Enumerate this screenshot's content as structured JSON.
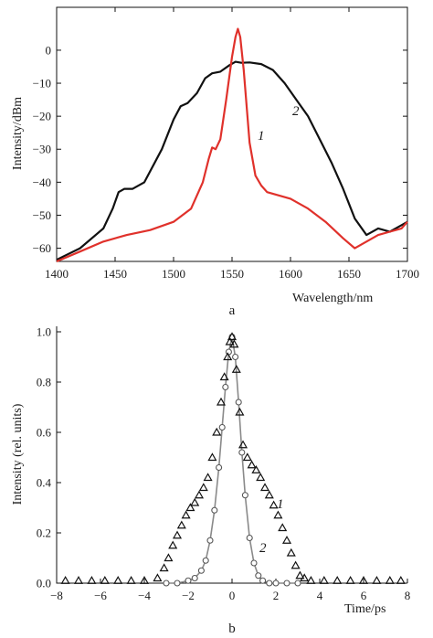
{
  "chart_data": [
    {
      "panel_label": "a",
      "type": "line",
      "xlabel": "Wavelength/nm",
      "ylabel": "Intensity/dBm",
      "xlim": [
        1400,
        1700
      ],
      "ylim": [
        -64,
        13
      ],
      "xticks": [
        1400,
        1450,
        1500,
        1550,
        1600,
        1650,
        1700
      ],
      "yticks": [
        0,
        -10,
        -20,
        -30,
        -40,
        -50,
        -60
      ],
      "grid": false,
      "series": [
        {
          "name": "2",
          "color": "#111111",
          "x": [
            1400,
            1420,
            1440,
            1448,
            1453,
            1458,
            1465,
            1475,
            1490,
            1500,
            1506,
            1512,
            1520,
            1527,
            1533,
            1540,
            1548,
            1553,
            1558,
            1565,
            1575,
            1585,
            1595,
            1605,
            1615,
            1625,
            1635,
            1645,
            1655,
            1665,
            1675,
            1685,
            1695,
            1700
          ],
          "y": [
            -63.5,
            -60,
            -54,
            -48,
            -43,
            -42,
            -42,
            -40,
            -30,
            -21,
            -17,
            -16,
            -13,
            -8.5,
            -7,
            -6.5,
            -4.5,
            -3.5,
            -3.8,
            -3.7,
            -4.2,
            -6,
            -10,
            -15,
            -20,
            -27,
            -34,
            -42,
            -51,
            -56,
            -54,
            -55,
            -53,
            -52
          ]
        },
        {
          "name": "1",
          "color": "#e0312b",
          "x": [
            1400,
            1420,
            1440,
            1460,
            1480,
            1500,
            1515,
            1525,
            1530,
            1533,
            1536,
            1540,
            1545,
            1550,
            1553,
            1555,
            1557,
            1560,
            1565,
            1570,
            1575,
            1580,
            1590,
            1600,
            1615,
            1630,
            1645,
            1655,
            1665,
            1675,
            1685,
            1695,
            1700
          ],
          "y": [
            -64,
            -61,
            -58,
            -56,
            -54.5,
            -52,
            -48,
            -40,
            -33,
            -29.5,
            -30,
            -27,
            -15,
            -2,
            4,
            6.5,
            4,
            -6,
            -28,
            -38,
            -41,
            -43,
            -44,
            -45,
            -48,
            -52,
            -57,
            -60,
            -58,
            -56,
            -55,
            -54,
            -52
          ]
        }
      ],
      "annotations": [
        "1",
        "2"
      ]
    },
    {
      "panel_label": "b",
      "type": "scatter",
      "xlabel": "Time/ps",
      "ylabel": "Intensity (rel. units)",
      "xlim": [
        -8,
        8
      ],
      "ylim": [
        0,
        1.0
      ],
      "xticks": [
        -8,
        -6,
        -4,
        -2,
        0,
        2,
        4,
        6,
        8
      ],
      "yticks": [
        0.0,
        0.2,
        0.4,
        0.6,
        0.8,
        1.0
      ],
      "ytick_labels": [
        "0.0",
        "0.2",
        "0.4",
        "0.6",
        "0.8",
        "1.0"
      ],
      "grid": false,
      "series": [
        {
          "name": "2",
          "marker": "triangle",
          "color": "#111111",
          "x": [
            -7.6,
            -7.0,
            -6.4,
            -5.8,
            -5.2,
            -4.6,
            -4.0,
            -3.4,
            -3.1,
            -2.9,
            -2.7,
            -2.5,
            -2.3,
            -2.1,
            -1.9,
            -1.7,
            -1.5,
            -1.3,
            -1.1,
            -0.9,
            -0.7,
            -0.5,
            -0.35,
            -0.2,
            -0.1,
            0.0,
            0.1,
            0.2,
            0.35,
            0.5,
            0.7,
            0.9,
            1.1,
            1.3,
            1.5,
            1.7,
            1.9,
            2.1,
            2.3,
            2.5,
            2.7,
            2.9,
            3.1,
            3.3,
            3.6,
            4.2,
            4.8,
            5.4,
            6.0,
            6.6,
            7.2,
            7.7
          ],
          "y": [
            0.01,
            0.01,
            0.01,
            0.01,
            0.01,
            0.01,
            0.01,
            0.02,
            0.06,
            0.1,
            0.15,
            0.19,
            0.23,
            0.27,
            0.3,
            0.32,
            0.35,
            0.38,
            0.42,
            0.5,
            0.6,
            0.72,
            0.82,
            0.9,
            0.96,
            0.98,
            0.95,
            0.85,
            0.68,
            0.55,
            0.5,
            0.47,
            0.45,
            0.42,
            0.38,
            0.35,
            0.31,
            0.27,
            0.22,
            0.17,
            0.12,
            0.07,
            0.03,
            0.02,
            0.01,
            0.01,
            0.01,
            0.01,
            0.01,
            0.01,
            0.01,
            0.01
          ]
        },
        {
          "name": "1",
          "marker": "circle",
          "color": "#555555",
          "x": [
            -3.0,
            -2.5,
            -2.0,
            -1.7,
            -1.4,
            -1.2,
            -1.0,
            -0.8,
            -0.6,
            -0.45,
            -0.3,
            -0.15,
            0.0,
            0.15,
            0.3,
            0.45,
            0.6,
            0.8,
            1.0,
            1.2,
            1.4,
            1.7,
            2.0,
            2.5,
            3.0
          ],
          "y": [
            0.0,
            0.0,
            0.01,
            0.02,
            0.05,
            0.09,
            0.17,
            0.29,
            0.46,
            0.62,
            0.78,
            0.92,
            0.98,
            0.9,
            0.72,
            0.52,
            0.35,
            0.18,
            0.08,
            0.03,
            0.01,
            0.0,
            0.0,
            0.0,
            0.0
          ]
        }
      ],
      "annotations": [
        "1",
        "2"
      ]
    }
  ]
}
